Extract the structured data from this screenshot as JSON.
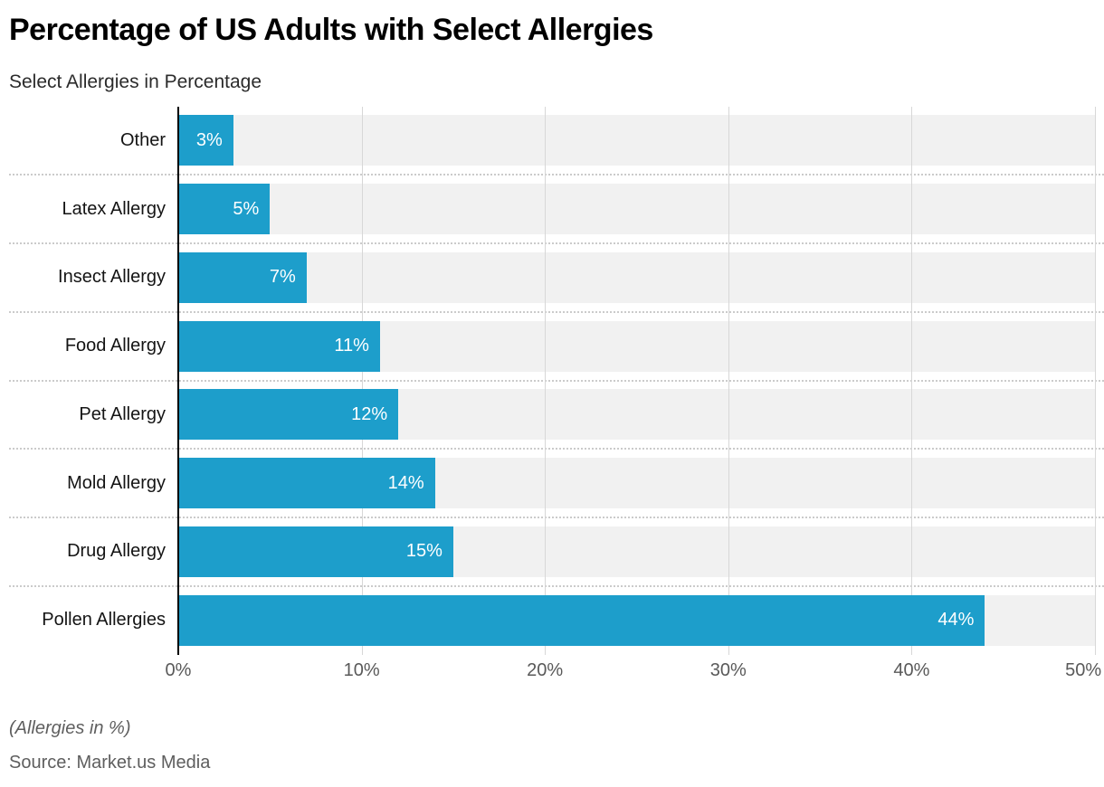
{
  "header": {
    "title": "Percentage of US Adults with Select Allergies",
    "subtitle": "Select Allergies in Percentage"
  },
  "footer": {
    "note": "(Allergies in %)",
    "source": "Source: Market.us Media"
  },
  "chart_data": {
    "type": "bar",
    "orientation": "horizontal",
    "title": "Percentage of US Adults with Select Allergies",
    "subtitle": "Select Allergies in Percentage",
    "categories": [
      "Other",
      "Latex Allergy",
      "Insect Allergy",
      "Food Allergy",
      "Pet Allergy",
      "Mold Allergy",
      "Drug Allergy",
      "Pollen Allergies"
    ],
    "values": [
      3,
      5,
      7,
      11,
      12,
      14,
      15,
      44
    ],
    "value_labels": [
      "3%",
      "5%",
      "7%",
      "11%",
      "12%",
      "14%",
      "15%",
      "44%"
    ],
    "xlabel": "",
    "ylabel": "",
    "xlim": [
      0,
      50
    ],
    "x_tick_values": [
      0,
      10,
      20,
      30,
      40,
      50
    ],
    "x_tick_labels": [
      "0%",
      "10%",
      "20%",
      "30%",
      "40%",
      "50%"
    ],
    "grid": true,
    "legend": "none",
    "bar_color": "#1d9ecb",
    "track_color": "#f1f1f1",
    "gridline_color": "#d7d7d7",
    "axis_line_color": "#000000",
    "value_label_color": "#ffffff"
  }
}
